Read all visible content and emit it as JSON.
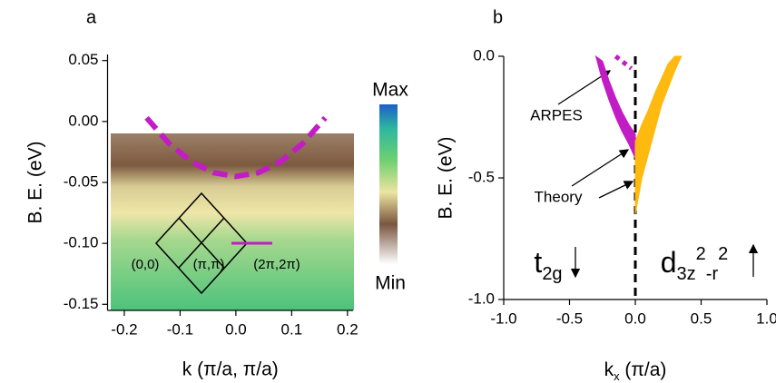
{
  "chart_data": [
    {
      "type": "heatmap",
      "panel_label": "a",
      "xlabel": "k (π/a, π/a)",
      "ylabel": "B. E. (eV)",
      "xlim": [
        -0.23,
        0.21
      ],
      "ylim": [
        -0.155,
        0.055
      ],
      "xticks": [
        -0.2,
        -0.1,
        {
          "value": 0.0,
          "label": "0.0"
        },
        0.1,
        0.2
      ],
      "yticks": [
        0.05,
        {
          "value": 0.0,
          "label": "0.00"
        },
        -0.05,
        {
          "value": -0.1,
          "label": "-0.10"
        },
        -0.15
      ],
      "colorbar_labels": [
        "Max",
        "Min"
      ],
      "annotations": [
        "(0,0)",
        "(π,π)",
        "(2π,2π)"
      ],
      "series": [
        {
          "style": "dashed",
          "color": "#c21cc4",
          "x": [
            -0.16,
            -0.12,
            -0.08,
            -0.04,
            0.0,
            0.04,
            0.08,
            0.12,
            0.16
          ],
          "values": [
            0.003,
            -0.018,
            -0.033,
            -0.042,
            -0.045,
            -0.042,
            -0.033,
            -0.018,
            0.003
          ]
        }
      ]
    },
    {
      "type": "area",
      "panel_label": "b",
      "xlabel_parts": [
        "k",
        "x",
        " (π/a)"
      ],
      "ylabel": "B. E. (eV)",
      "xlim": [
        -1.0,
        1.0
      ],
      "ylim": [
        -1.0,
        0.0
      ],
      "xticks": [
        {
          "value": -1.0,
          "label": "-1.0"
        },
        -0.5,
        {
          "value": 0.0,
          "label": "0.0"
        },
        0.5,
        {
          "value": 1.0,
          "label": "1.0"
        }
      ],
      "yticks": [
        {
          "value": 0.0,
          "label": "0.0"
        },
        -0.5,
        {
          "value": -1.0,
          "label": "-1.0"
        }
      ],
      "vline": 0,
      "annotations": [
        "ARPES",
        "Theory"
      ],
      "band_labels": [
        [
          "t",
          "2g"
        ],
        [
          "d",
          "3z",
          "2",
          "-r",
          "2"
        ]
      ],
      "series": [
        {
          "style": "band",
          "color": "#c21cc4",
          "x": [
            -0.3,
            -0.25,
            -0.2,
            -0.15,
            -0.1,
            -0.05,
            0.0
          ],
          "upper": [
            0.0,
            -0.02,
            -0.1,
            -0.17,
            -0.23,
            -0.28,
            -0.32
          ],
          "lower": [
            0.0,
            -0.1,
            -0.18,
            -0.25,
            -0.31,
            -0.36,
            -0.42
          ]
        },
        {
          "style": "band",
          "color": "#ffb90f",
          "x": [
            0.0,
            0.05,
            0.1,
            0.15,
            0.2,
            0.25,
            0.3,
            0.35
          ],
          "upper": [
            -0.35,
            -0.28,
            -0.22,
            -0.15,
            -0.09,
            -0.03,
            0.0,
            0.0
          ],
          "lower": [
            -0.65,
            -0.5,
            -0.4,
            -0.3,
            -0.2,
            -0.13,
            -0.06,
            0.0
          ]
        },
        {
          "style": "dotted",
          "color": "#c21cc4",
          "x": [
            -0.15,
            -0.03
          ],
          "values": [
            0.0,
            -0.05
          ]
        }
      ]
    }
  ]
}
